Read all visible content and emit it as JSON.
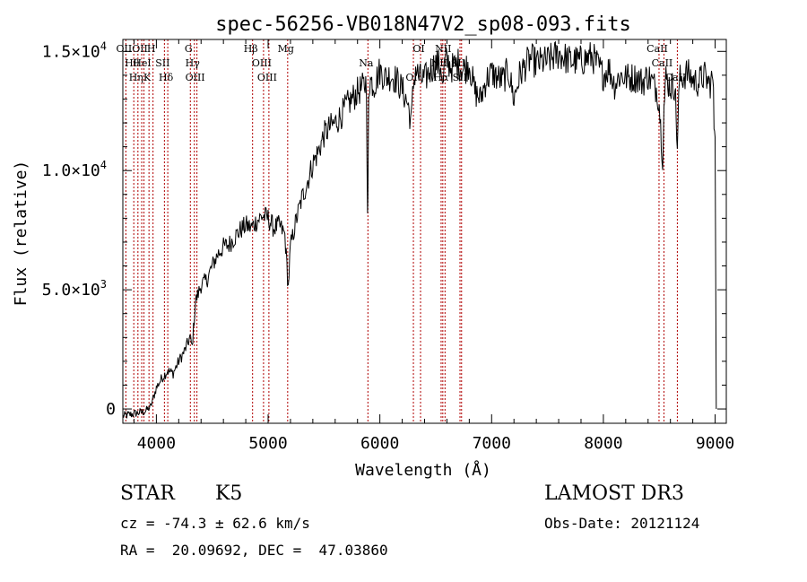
{
  "chart_data": {
    "type": "line",
    "title": "spec-56256-VB018N47V2_sp08-093.fits",
    "xlabel": "Wavelength (Å)",
    "ylabel": "Flux (relative)",
    "xlim": [
      3700,
      9100
    ],
    "ylim": [
      -600,
      15500
    ],
    "xticks": [
      {
        "value": 4000,
        "label": "4000"
      },
      {
        "value": 5000,
        "label": "5000"
      },
      {
        "value": 6000,
        "label": "6000"
      },
      {
        "value": 7000,
        "label": "7000"
      },
      {
        "value": 8000,
        "label": "8000"
      },
      {
        "value": 9000,
        "label": "9000"
      }
    ],
    "yticks": [
      {
        "value": 0,
        "mant": "0",
        "exp": ""
      },
      {
        "value": 5000,
        "mant": "5.0×10",
        "exp": "3"
      },
      {
        "value": 10000,
        "mant": "1.0×10",
        "exp": "4"
      },
      {
        "value": 15000,
        "mant": "1.5×10",
        "exp": "4"
      }
    ],
    "series": [
      {
        "name": "flux",
        "x": [
          3700,
          3800,
          3900,
          3950,
          4000,
          4050,
          4100,
          4150,
          4200,
          4250,
          4300,
          4320,
          4350,
          4400,
          4450,
          4500,
          4550,
          4600,
          4650,
          4700,
          4750,
          4800,
          4850,
          4900,
          4950,
          5000,
          5050,
          5100,
          5150,
          5180,
          5200,
          5250,
          5300,
          5350,
          5400,
          5450,
          5500,
          5550,
          5600,
          5650,
          5700,
          5750,
          5800,
          5850,
          5880,
          5890,
          5895,
          5900,
          5910,
          5950,
          6000,
          6050,
          6100,
          6150,
          6200,
          6250,
          6280,
          6300,
          6320,
          6350,
          6400,
          6450,
          6500,
          6550,
          6563,
          6580,
          6600,
          6650,
          6700,
          6750,
          6800,
          6850,
          6900,
          6950,
          7000,
          7050,
          7100,
          7150,
          7200,
          7250,
          7300,
          7350,
          7400,
          7500,
          7600,
          7700,
          7800,
          7900,
          8000,
          8050,
          8100,
          8150,
          8200,
          8250,
          8300,
          8350,
          8400,
          8450,
          8480,
          8500,
          8530,
          8542,
          8560,
          8600,
          8640,
          8662,
          8680,
          8700,
          8750,
          8800,
          8850,
          8900,
          8950,
          8980,
          8990,
          9000,
          9010
        ],
        "y": [
          -300,
          -200,
          -100,
          100,
          900,
          1300,
          1600,
          1500,
          2000,
          2400,
          3000,
          2600,
          4500,
          5200,
          5400,
          6000,
          6500,
          6800,
          6900,
          7200,
          7500,
          7700,
          7600,
          7900,
          8100,
          8000,
          7600,
          7700,
          7300,
          5100,
          6800,
          7900,
          8800,
          9500,
          10300,
          10800,
          11500,
          11800,
          12000,
          12300,
          12700,
          13000,
          13300,
          13500,
          13700,
          7900,
          10000,
          13400,
          13800,
          13600,
          14200,
          13900,
          14000,
          13800,
          13400,
          12800,
          12000,
          13600,
          14300,
          13900,
          13800,
          14200,
          14500,
          14400,
          13400,
          14500,
          14600,
          14300,
          14500,
          14200,
          14500,
          13300,
          13000,
          13800,
          14100,
          13900,
          13800,
          14200,
          13000,
          14000,
          14400,
          14700,
          14500,
          14600,
          14900,
          14600,
          14600,
          14800,
          14000,
          14300,
          13600,
          14000,
          13900,
          13900,
          13900,
          13700,
          14000,
          13600,
          13400,
          12800,
          10500,
          12600,
          13900,
          13500,
          13600,
          11000,
          13800,
          13900,
          14100,
          13800,
          13700,
          14000,
          13600,
          13900,
          12000,
          11800,
          0
        ]
      }
    ],
    "lines": [
      {
        "wave": 3727,
        "labels": [
          "OII"
        ]
      },
      {
        "wave": 3798,
        "labels": [
          "Hθ"
        ]
      },
      {
        "wave": 3835,
        "labels": [
          "Hη"
        ]
      },
      {
        "wave": 3869,
        "labels": [
          "OII"
        ]
      },
      {
        "wave": 3889,
        "labels": [
          "HeI"
        ]
      },
      {
        "wave": 3934,
        "labels": [
          "K"
        ]
      },
      {
        "wave": 3970,
        "labels": [
          "H"
        ]
      },
      {
        "wave": 4072,
        "labels": [
          "SII"
        ]
      },
      {
        "wave": 4102,
        "labels": [
          "Hδ"
        ]
      },
      {
        "wave": 4304,
        "labels": [
          "G"
        ]
      },
      {
        "wave": 4340,
        "labels": [
          "Hγ"
        ]
      },
      {
        "wave": 4363,
        "labels": [
          "OIII"
        ]
      },
      {
        "wave": 4861,
        "labels": [
          "Hβ"
        ]
      },
      {
        "wave": 4959,
        "labels": [
          "OIII"
        ]
      },
      {
        "wave": 5007,
        "labels": [
          "OIII"
        ]
      },
      {
        "wave": 5175,
        "labels": [
          "Mg"
        ]
      },
      {
        "wave": 5893,
        "labels": [
          "Na"
        ]
      },
      {
        "wave": 6300,
        "labels": [
          "OI"
        ]
      },
      {
        "wave": 6364,
        "labels": [
          "OI"
        ]
      },
      {
        "wave": 6548,
        "labels": [
          "NII"
        ]
      },
      {
        "wave": 6563,
        "labels": [
          "Hα"
        ]
      },
      {
        "wave": 6583,
        "labels": [
          "NII"
        ]
      },
      {
        "wave": 6717,
        "labels": [
          "SII"
        ]
      },
      {
        "wave": 6731,
        "labels": [
          "SII"
        ]
      },
      {
        "wave": 8498,
        "labels": [
          "CaII"
        ]
      },
      {
        "wave": 8542,
        "labels": [
          "CaII"
        ]
      },
      {
        "wave": 8662,
        "labels": [
          "CaII"
        ]
      }
    ]
  },
  "info": {
    "class": "STAR",
    "subclass": "K5",
    "survey": "LAMOST DR3",
    "cz": "cz = -74.3 ± 62.6 km/s",
    "obsdate": "Obs-Date: 20121124",
    "radec": "RA =  20.09692, DEC =  47.03860"
  },
  "colors": {
    "axis": "#000000",
    "spectrum": "#000000",
    "line_marker": "#b00000"
  }
}
